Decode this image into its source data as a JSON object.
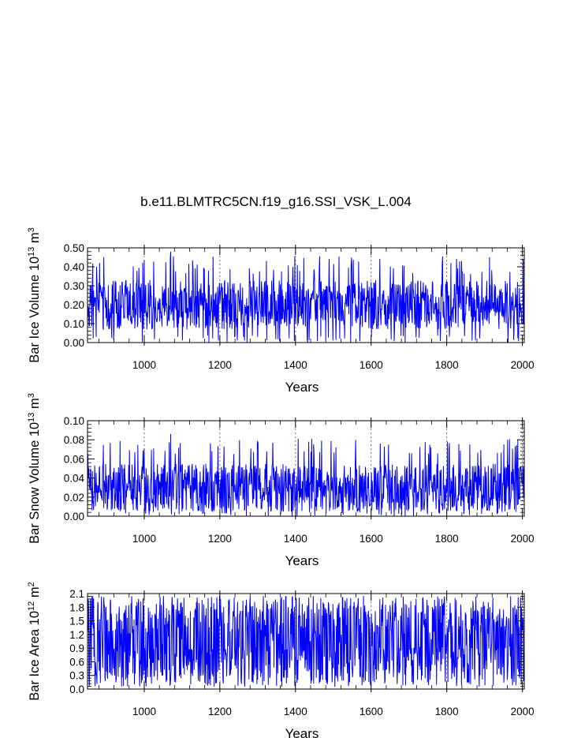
{
  "title": "b.e11.BLMTRC5CN.f19_g16.SSI_VSK_L.004",
  "colors": {
    "series": "#0000ff",
    "axis": "#000000",
    "grid": "#555555",
    "background": "#ffffff"
  },
  "chart_data": [
    {
      "type": "line",
      "xlabel": "Years",
      "ylabel": {
        "text": "Bar Ice Volume 10",
        "sup1": "13",
        "mid": " m",
        "sup2": "3"
      },
      "xlim": [
        850,
        2005
      ],
      "ylim": [
        0.0,
        0.5
      ],
      "xticks": [
        1000,
        1200,
        1400,
        1600,
        1800,
        2000
      ],
      "xtick_labels": [
        "1000",
        "1200",
        "1400",
        "1600",
        "1800",
        "2000"
      ],
      "yticks": [
        0.0,
        0.1,
        0.2,
        0.3,
        0.4,
        0.5
      ],
      "ytick_labels": [
        "0.00",
        "0.10",
        "0.20",
        "0.30",
        "0.40",
        "0.50"
      ],
      "grid": "vertical-dashed",
      "series": [
        {
          "x_start": 850,
          "x_end": 2005,
          "mean": 0.2,
          "min": 0.0,
          "max": 0.48,
          "spread": 0.13,
          "peak_year": 1070
        }
      ]
    },
    {
      "type": "line",
      "xlabel": "Years",
      "ylabel": {
        "text": "Bar Snow Volume 10",
        "sup1": "13",
        "mid": " m",
        "sup2": "3"
      },
      "xlim": [
        850,
        2005
      ],
      "ylim": [
        0.0,
        0.1
      ],
      "xticks": [
        1000,
        1200,
        1400,
        1600,
        1800,
        2000
      ],
      "xtick_labels": [
        "1000",
        "1200",
        "1400",
        "1600",
        "1800",
        "2000"
      ],
      "yticks": [
        0.0,
        0.02,
        0.04,
        0.06,
        0.08,
        0.1
      ],
      "ytick_labels": [
        "0.00",
        "0.02",
        "0.04",
        "0.06",
        "0.08",
        "0.10"
      ],
      "grid": "vertical-dashed",
      "series": [
        {
          "x_start": 850,
          "x_end": 2005,
          "mean": 0.03,
          "min": 0.0,
          "max": 0.086,
          "spread": 0.025,
          "peak_year": 1070
        }
      ]
    },
    {
      "type": "line",
      "xlabel": "Years",
      "ylabel": {
        "text": "Bar Ice Area 10",
        "sup1": "12",
        "mid": " m",
        "sup2": "2"
      },
      "xlim": [
        850,
        2005
      ],
      "ylim": [
        0.0,
        2.1
      ],
      "xticks": [
        1000,
        1200,
        1400,
        1600,
        1800,
        2000
      ],
      "xtick_labels": [
        "1000",
        "1200",
        "1400",
        "1600",
        "1800",
        "2000"
      ],
      "yticks": [
        0.0,
        0.3,
        0.6,
        0.9,
        1.2,
        1.5,
        1.8,
        2.1
      ],
      "ytick_labels": [
        "0.0",
        "0.3",
        "0.6",
        "0.9",
        "1.2",
        "1.5",
        "1.8",
        "2.1"
      ],
      "grid": "vertical-dashed",
      "series": [
        {
          "x_start": 850,
          "x_end": 2005,
          "mean": 1.1,
          "min": 0.05,
          "max": 2.05,
          "spread": 0.9,
          "peak_year": 1580
        }
      ]
    }
  ]
}
